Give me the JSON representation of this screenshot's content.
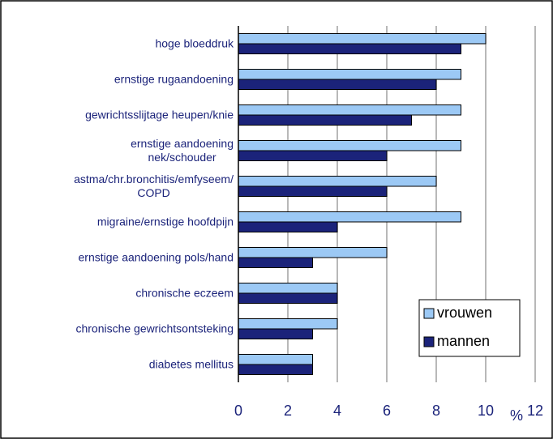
{
  "chart_data": {
    "type": "bar",
    "orientation": "horizontal",
    "categories": [
      "hoge bloeddruk",
      "ernstige rugaandoening",
      "gewrichtsslijtage heupen/knie",
      "ernstige aandoening\nnek/schouder",
      "astma/chr.bronchitis/emfyseem/\nCOPD",
      "migraine/ernstige hoofdpijn",
      "ernstige aandoening pols/hand",
      "chronische eczeem",
      "chronische gewrichtsontsteking",
      "diabetes mellitus"
    ],
    "series": [
      {
        "name": "vrouwen",
        "color": "#9cc9f5",
        "values": [
          10,
          9,
          9,
          9,
          8,
          9,
          6,
          4,
          4,
          3
        ]
      },
      {
        "name": "mannen",
        "color": "#1b237a",
        "values": [
          9,
          8,
          7,
          6,
          6,
          4,
          3,
          4,
          3,
          3
        ]
      }
    ],
    "x_label": "%",
    "xlim": [
      0,
      12
    ],
    "xticks": [
      0,
      2,
      4,
      6,
      8,
      10,
      12
    ],
    "grid": true,
    "legend": "lower right"
  }
}
